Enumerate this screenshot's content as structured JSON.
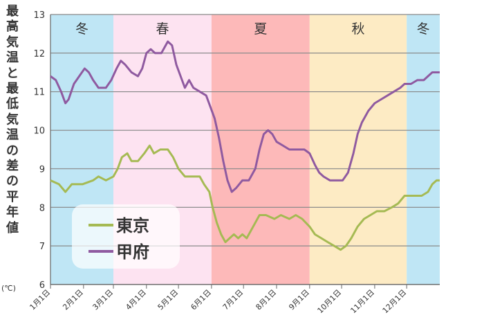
{
  "chart_data": {
    "type": "line",
    "title": "",
    "ylabel": "最高気温と最低気温の差の平年値",
    "yunit": "(℃)",
    "ylim": [
      6,
      13
    ],
    "yticks": [
      6,
      7,
      8,
      9,
      10,
      11,
      12,
      13
    ],
    "x_months": [
      "1月1日",
      "2月1日",
      "3月1日",
      "4月1日",
      "5月1日",
      "6月1日",
      "7月1日",
      "8月1日",
      "9月1日",
      "10月1日",
      "11月1日",
      "12月1日"
    ],
    "x_range_days": [
      0,
      365
    ],
    "grid": true,
    "legend_position": "lower-left",
    "seasons": [
      {
        "name": "冬",
        "start": 0,
        "end": 59,
        "color": "#bfe6f5"
      },
      {
        "name": "春",
        "start": 59,
        "end": 151,
        "color": "#fde3f1"
      },
      {
        "name": "夏",
        "start": 151,
        "end": 243,
        "color": "#fdb9b9"
      },
      {
        "name": "秋",
        "start": 243,
        "end": 334,
        "color": "#fdebc4"
      },
      {
        "name": "冬",
        "start": 334,
        "end": 365,
        "color": "#bfe6f5"
      }
    ],
    "series": [
      {
        "name": "東京",
        "color": "#a5ba53",
        "points": [
          [
            0,
            8.7
          ],
          [
            8,
            8.6
          ],
          [
            14,
            8.4
          ],
          [
            20,
            8.6
          ],
          [
            30,
            8.6
          ],
          [
            40,
            8.7
          ],
          [
            45,
            8.8
          ],
          [
            52,
            8.7
          ],
          [
            59,
            8.8
          ],
          [
            63,
            9.0
          ],
          [
            67,
            9.3
          ],
          [
            72,
            9.4
          ],
          [
            76,
            9.2
          ],
          [
            82,
            9.2
          ],
          [
            88,
            9.4
          ],
          [
            93,
            9.6
          ],
          [
            97,
            9.4
          ],
          [
            103,
            9.5
          ],
          [
            110,
            9.5
          ],
          [
            115,
            9.3
          ],
          [
            120,
            9.0
          ],
          [
            126,
            8.8
          ],
          [
            134,
            8.8
          ],
          [
            140,
            8.8
          ],
          [
            144,
            8.6
          ],
          [
            149,
            8.4
          ],
          [
            152,
            8.0
          ],
          [
            156,
            7.6
          ],
          [
            160,
            7.3
          ],
          [
            164,
            7.1
          ],
          [
            168,
            7.2
          ],
          [
            172,
            7.3
          ],
          [
            176,
            7.2
          ],
          [
            180,
            7.3
          ],
          [
            184,
            7.2
          ],
          [
            190,
            7.5
          ],
          [
            196,
            7.8
          ],
          [
            202,
            7.8
          ],
          [
            210,
            7.7
          ],
          [
            216,
            7.8
          ],
          [
            224,
            7.7
          ],
          [
            230,
            7.8
          ],
          [
            236,
            7.7
          ],
          [
            243,
            7.5
          ],
          [
            248,
            7.3
          ],
          [
            254,
            7.2
          ],
          [
            260,
            7.1
          ],
          [
            266,
            7.0
          ],
          [
            272,
            6.9
          ],
          [
            277,
            7.0
          ],
          [
            282,
            7.2
          ],
          [
            288,
            7.5
          ],
          [
            294,
            7.7
          ],
          [
            300,
            7.8
          ],
          [
            306,
            7.9
          ],
          [
            313,
            7.9
          ],
          [
            320,
            8.0
          ],
          [
            326,
            8.1
          ],
          [
            332,
            8.3
          ],
          [
            340,
            8.3
          ],
          [
            348,
            8.3
          ],
          [
            354,
            8.4
          ],
          [
            358,
            8.6
          ],
          [
            362,
            8.7
          ],
          [
            365,
            8.7
          ]
        ]
      },
      {
        "name": "甲府",
        "color": "#8f5aa0",
        "points": [
          [
            0,
            11.4
          ],
          [
            5,
            11.3
          ],
          [
            10,
            11.0
          ],
          [
            14,
            10.7
          ],
          [
            17,
            10.8
          ],
          [
            22,
            11.2
          ],
          [
            27,
            11.4
          ],
          [
            32,
            11.6
          ],
          [
            36,
            11.5
          ],
          [
            40,
            11.3
          ],
          [
            45,
            11.1
          ],
          [
            52,
            11.1
          ],
          [
            57,
            11.3
          ],
          [
            62,
            11.6
          ],
          [
            66,
            11.8
          ],
          [
            70,
            11.7
          ],
          [
            76,
            11.5
          ],
          [
            82,
            11.4
          ],
          [
            86,
            11.6
          ],
          [
            90,
            12.0
          ],
          [
            94,
            12.1
          ],
          [
            98,
            12.0
          ],
          [
            104,
            12.0
          ],
          [
            110,
            12.3
          ],
          [
            114,
            12.2
          ],
          [
            118,
            11.7
          ],
          [
            122,
            11.4
          ],
          [
            126,
            11.1
          ],
          [
            130,
            11.3
          ],
          [
            134,
            11.1
          ],
          [
            140,
            11.0
          ],
          [
            146,
            10.9
          ],
          [
            150,
            10.6
          ],
          [
            154,
            10.3
          ],
          [
            158,
            9.8
          ],
          [
            162,
            9.2
          ],
          [
            166,
            8.7
          ],
          [
            170,
            8.4
          ],
          [
            174,
            8.5
          ],
          [
            180,
            8.7
          ],
          [
            186,
            8.7
          ],
          [
            192,
            9.0
          ],
          [
            196,
            9.5
          ],
          [
            200,
            9.9
          ],
          [
            204,
            10.0
          ],
          [
            208,
            9.9
          ],
          [
            212,
            9.7
          ],
          [
            218,
            9.6
          ],
          [
            224,
            9.5
          ],
          [
            232,
            9.5
          ],
          [
            238,
            9.5
          ],
          [
            243,
            9.4
          ],
          [
            248,
            9.1
          ],
          [
            252,
            8.9
          ],
          [
            256,
            8.8
          ],
          [
            262,
            8.7
          ],
          [
            268,
            8.7
          ],
          [
            274,
            8.7
          ],
          [
            279,
            8.9
          ],
          [
            284,
            9.4
          ],
          [
            288,
            9.9
          ],
          [
            292,
            10.2
          ],
          [
            298,
            10.5
          ],
          [
            304,
            10.7
          ],
          [
            310,
            10.8
          ],
          [
            316,
            10.9
          ],
          [
            322,
            11.0
          ],
          [
            328,
            11.1
          ],
          [
            332,
            11.2
          ],
          [
            338,
            11.2
          ],
          [
            344,
            11.3
          ],
          [
            350,
            11.3
          ],
          [
            354,
            11.4
          ],
          [
            358,
            11.5
          ],
          [
            365,
            11.5
          ]
        ]
      }
    ]
  }
}
